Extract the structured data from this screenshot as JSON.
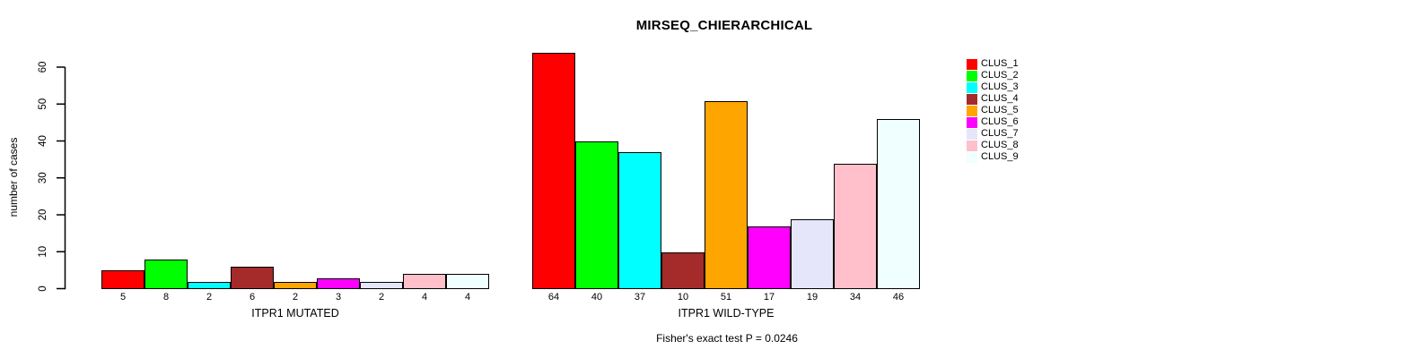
{
  "chart_data": {
    "type": "bar",
    "title": "MIRSEQ_CHIERARCHICAL",
    "ylabel": "number of cases",
    "xlabel": "",
    "ylim": [
      0,
      60
    ],
    "yticks": [
      0,
      10,
      20,
      30,
      40,
      50,
      60
    ],
    "grid": false,
    "legend_position": "right",
    "categories": [
      "CLUS_1",
      "CLUS_2",
      "CLUS_3",
      "CLUS_4",
      "CLUS_5",
      "CLUS_6",
      "CLUS_7",
      "CLUS_8",
      "CLUS_9"
    ],
    "colors": [
      "#FF0000",
      "#00FF00",
      "#00FFFF",
      "#A52A2A",
      "#FFA500",
      "#FF00FF",
      "#E6E6FA",
      "#FFC0CB",
      "#F0FFFF"
    ],
    "groups": [
      {
        "label": "ITPR1 MUTATED",
        "values": [
          5,
          8,
          2,
          6,
          2,
          3,
          2,
          4,
          4
        ]
      },
      {
        "label": "ITPR1 WILD-TYPE",
        "values": [
          64,
          40,
          37,
          10,
          51,
          17,
          19,
          34,
          46
        ]
      }
    ],
    "annotation": "Fisher's exact test P = 0.0246",
    "bar_borders": "#000000",
    "background": "#FFFFFF"
  }
}
